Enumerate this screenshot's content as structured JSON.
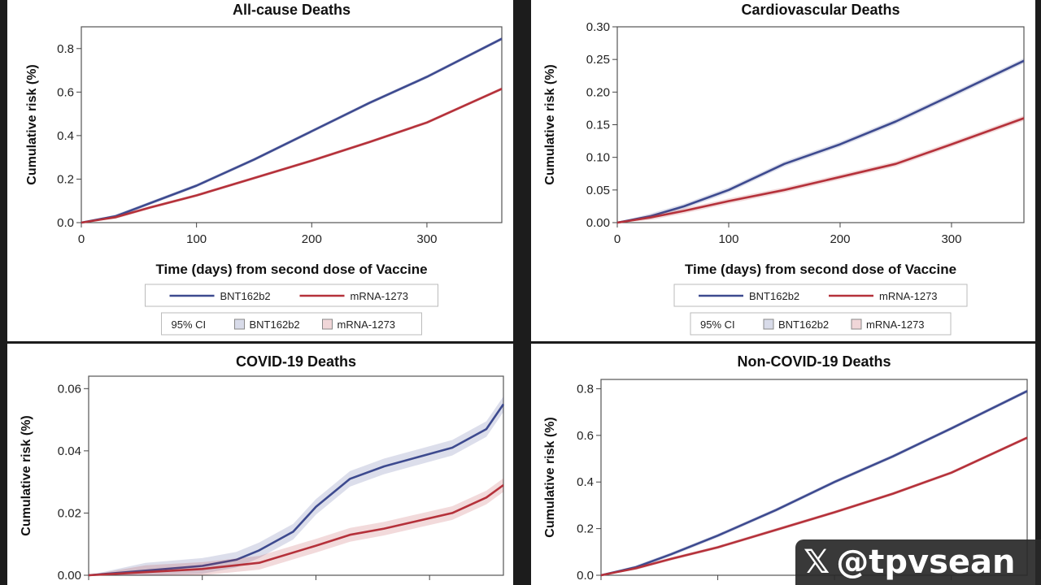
{
  "chart_data": [
    {
      "type": "line",
      "title": "All-cause Deaths",
      "ylabel": "Cumulative risk (%)",
      "xlabel": "Time (days) from second dose of Vaccine",
      "xlim": [
        0,
        365
      ],
      "ylim": [
        0,
        0.9
      ],
      "xticks": [
        0,
        100,
        200,
        300
      ],
      "yticks": [
        0.0,
        0.2,
        0.4,
        0.6,
        0.8
      ],
      "ytick_labels": [
        "0.0",
        "0.2",
        "0.4",
        "0.6",
        "0.8"
      ],
      "show_xlabel": true,
      "series": [
        {
          "name": "BNT162b2",
          "color": "#3d4a8f",
          "ci": 0.008,
          "x": [
            0,
            30,
            60,
            100,
            150,
            200,
            250,
            300,
            365
          ],
          "y": [
            0,
            0.03,
            0.09,
            0.17,
            0.29,
            0.42,
            0.55,
            0.67,
            0.845
          ]
        },
        {
          "name": "mRNA-1273",
          "color": "#b5313a",
          "ci": 0.007,
          "x": [
            0,
            30,
            60,
            100,
            150,
            200,
            250,
            300,
            365
          ],
          "y": [
            0,
            0.025,
            0.07,
            0.125,
            0.205,
            0.285,
            0.37,
            0.46,
            0.615
          ]
        }
      ],
      "legend": {
        "entries": [
          "BNT162b2",
          "mRNA-1273"
        ],
        "ci_label": "95% CI",
        "ci_entries": [
          "BNT162b2",
          "mRNA-1273"
        ],
        "placement": "bottom"
      }
    },
    {
      "type": "line",
      "title": "Cardiovascular Deaths",
      "ylabel": "Cumulative risk (%)",
      "xlabel": "Time (days) from second dose of Vaccine",
      "xlim": [
        0,
        365
      ],
      "ylim": [
        0,
        0.3
      ],
      "xticks": [
        0,
        100,
        200,
        300
      ],
      "yticks": [
        0.0,
        0.05,
        0.1,
        0.15,
        0.2,
        0.25,
        0.3
      ],
      "ytick_labels": [
        "0.00",
        "0.05",
        "0.10",
        "0.15",
        "0.20",
        "0.25",
        "0.30"
      ],
      "show_xlabel": true,
      "series": [
        {
          "name": "BNT162b2",
          "color": "#3d4a8f",
          "ci": 0.004,
          "x": [
            0,
            30,
            60,
            100,
            150,
            200,
            250,
            300,
            365
          ],
          "y": [
            0,
            0.01,
            0.025,
            0.05,
            0.09,
            0.12,
            0.155,
            0.195,
            0.248
          ]
        },
        {
          "name": "mRNA-1273",
          "color": "#b5313a",
          "ci": 0.004,
          "x": [
            0,
            30,
            60,
            100,
            150,
            200,
            250,
            300,
            365
          ],
          "y": [
            0,
            0.008,
            0.018,
            0.033,
            0.05,
            0.07,
            0.09,
            0.12,
            0.16
          ]
        }
      ],
      "legend": {
        "entries": [
          "BNT162b2",
          "mRNA-1273"
        ],
        "ci_label": "95% CI",
        "ci_entries": [
          "BNT162b2",
          "mRNA-1273"
        ],
        "placement": "bottom"
      }
    },
    {
      "type": "line",
      "title": "COVID-19 Deaths",
      "ylabel": "Cumulative risk (%)",
      "xlabel": "",
      "xlim": [
        0,
        365
      ],
      "ylim": [
        0,
        0.064
      ],
      "xticks": [
        0,
        100,
        200,
        300
      ],
      "yticks": [
        0.0,
        0.02,
        0.04,
        0.06
      ],
      "ytick_labels": [
        "0.00",
        "0.02",
        "0.04",
        "0.06"
      ],
      "show_xlabel": false,
      "series": [
        {
          "name": "BNT162b2",
          "color": "#3d4a8f",
          "ci": 0.0025,
          "x": [
            0,
            50,
            100,
            130,
            150,
            180,
            200,
            230,
            260,
            290,
            320,
            350,
            365
          ],
          "y": [
            0,
            0.0015,
            0.003,
            0.005,
            0.008,
            0.014,
            0.022,
            0.031,
            0.035,
            0.038,
            0.041,
            0.047,
            0.055
          ]
        },
        {
          "name": "mRNA-1273",
          "color": "#b5313a",
          "ci": 0.0022,
          "x": [
            0,
            50,
            100,
            150,
            200,
            230,
            260,
            290,
            320,
            350,
            365
          ],
          "y": [
            0,
            0.001,
            0.002,
            0.004,
            0.0095,
            0.013,
            0.015,
            0.0175,
            0.02,
            0.025,
            0.029
          ]
        }
      ]
    },
    {
      "type": "line",
      "title": "Non-COVID-19 Deaths",
      "ylabel": "Cumulative risk (%)",
      "xlabel": "",
      "xlim": [
        0,
        365
      ],
      "ylim": [
        0,
        0.84
      ],
      "xticks": [
        0,
        100,
        200,
        300
      ],
      "yticks": [
        0.0,
        0.2,
        0.4,
        0.6,
        0.8
      ],
      "ytick_labels": [
        "0.0",
        "0.2",
        "0.4",
        "0.6",
        "0.8"
      ],
      "show_xlabel": false,
      "series": [
        {
          "name": "BNT162b2",
          "color": "#3d4a8f",
          "ci": 0.008,
          "x": [
            0,
            30,
            60,
            100,
            150,
            200,
            250,
            300,
            365
          ],
          "y": [
            0,
            0.035,
            0.09,
            0.17,
            0.28,
            0.4,
            0.51,
            0.63,
            0.79
          ]
        },
        {
          "name": "mRNA-1273",
          "color": "#b5313a",
          "ci": 0.007,
          "x": [
            0,
            30,
            60,
            100,
            150,
            200,
            250,
            300,
            365
          ],
          "y": [
            0,
            0.03,
            0.07,
            0.12,
            0.195,
            0.27,
            0.35,
            0.44,
            0.59
          ]
        }
      ]
    }
  ],
  "watermark": {
    "logo": "𝕏",
    "handle": "@tpvsean"
  }
}
